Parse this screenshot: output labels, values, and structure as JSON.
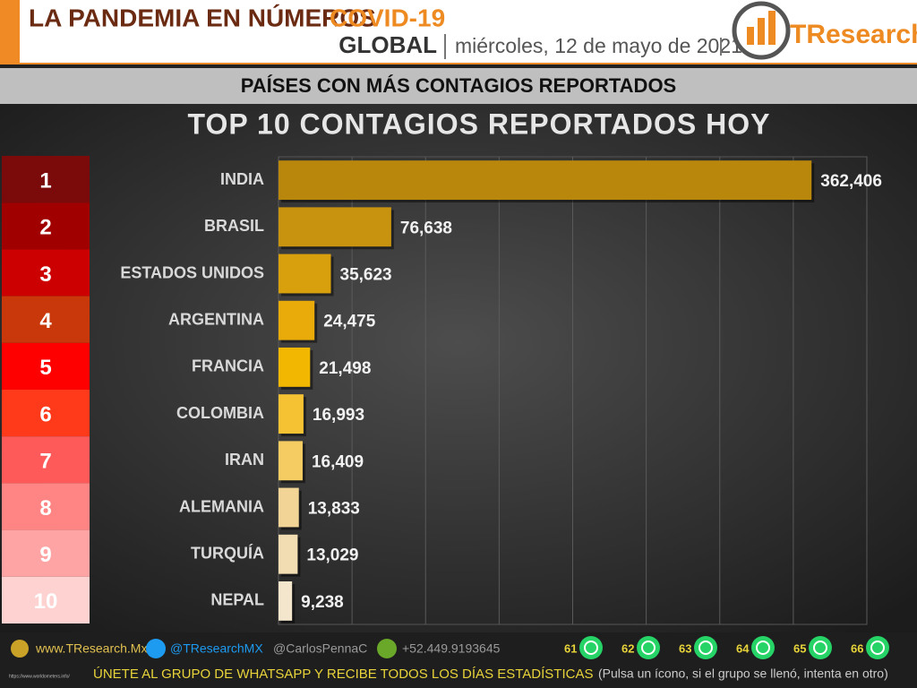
{
  "header": {
    "title": "LA PANDEMIA EN NÚMEROS",
    "title_accent": "COVID-19",
    "scope": "GLOBAL",
    "date": "miércoles, 12 de mayo de 2021",
    "logo": "TResearch"
  },
  "banner": "PAÍSES CON MÁS CONTAGIOS REPORTADOS",
  "chart_data": {
    "type": "hbar",
    "title": "TOP 10 CONTAGIOS REPORTADOS HOY",
    "ranks": [
      1,
      2,
      3,
      4,
      5,
      6,
      7,
      8,
      9,
      10
    ],
    "rank_colors": [
      "#7b0a0a",
      "#a00000",
      "#cc0000",
      "#c8380a",
      "#ff0000",
      "#ff3a1a",
      "#ff5a5a",
      "#ff8484",
      "#ffa4a4",
      "#ffd2d2"
    ],
    "categories": [
      "INDIA",
      "BRASIL",
      "ESTADOS UNIDOS",
      "ARGENTINA",
      "FRANCIA",
      "COLOMBIA",
      "IRAN",
      "ALEMANIA",
      "TURQUÍA",
      "NEPAL"
    ],
    "values": [
      362406,
      76638,
      35623,
      24475,
      21498,
      16993,
      16409,
      13833,
      13029,
      9238
    ],
    "value_labels": [
      "362,406",
      "76,638",
      "35,623",
      "24,475",
      "21,498",
      "16,993",
      "16,409",
      "13,833",
      "13,029",
      "9,238"
    ],
    "colors": [
      "#b8870c",
      "#c8930e",
      "#d9a00e",
      "#e8ab0a",
      "#f2b700",
      "#f4c232",
      "#f4cc62",
      "#f2d596",
      "#f2ddb2",
      "#f4e6cc"
    ],
    "xlim": [
      0,
      400000
    ],
    "xticks": [
      0,
      50000,
      100000,
      150000,
      200000,
      250000,
      300000,
      350000,
      400000
    ],
    "grid": true
  },
  "footer": {
    "web": "www.TResearch.Mx",
    "twitter": "@TResearchMX",
    "author": "@CarlosPennaC",
    "phone": "+52.449.9193645",
    "groups": [
      61,
      62,
      63,
      64,
      65,
      66
    ],
    "source": "https://www.worldometers.info/",
    "cta": "ÚNETE AL GRUPO DE WHATSAPP Y RECIBE TODOS LOS DÍAS ESTADÍSTICAS",
    "cta_note": "(Pulsa un ícono, si el grupo se llenó, intenta en otro)"
  }
}
